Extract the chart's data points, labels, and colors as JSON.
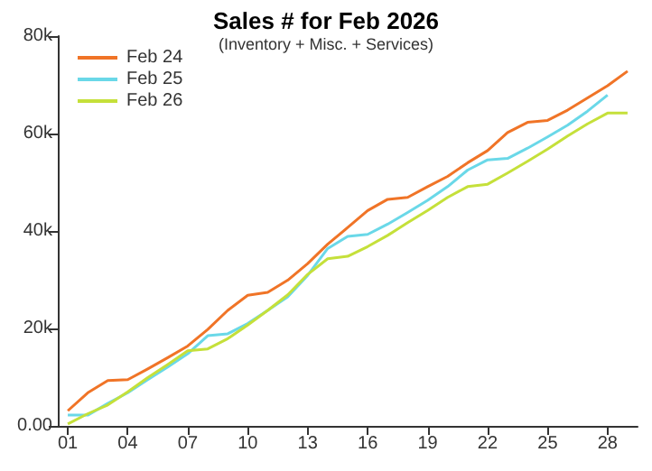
{
  "chart_data": {
    "type": "line",
    "title": "Sales # for Feb 2026",
    "subtitle": "(Inventory + Misc. + Services)",
    "categories": [
      "01",
      null,
      null,
      "04",
      null,
      null,
      "07",
      null,
      null,
      "10",
      null,
      null,
      "13",
      null,
      null,
      "16",
      null,
      null,
      "19",
      null,
      null,
      "22",
      null,
      null,
      "25",
      null,
      null,
      "28",
      null
    ],
    "series": [
      {
        "name": "Feb 24",
        "color": "#f07427",
        "values": [
          3100,
          6800,
          9300,
          9500,
          11700,
          14000,
          16400,
          19800,
          23700,
          26800,
          27400,
          29900,
          33300,
          37300,
          40700,
          44200,
          46500,
          46900,
          49100,
          51200,
          54000,
          56500,
          60200,
          62300,
          62700,
          64800,
          67300,
          69800,
          72800
        ]
      },
      {
        "name": "Feb 25",
        "color": "#6ad8e8",
        "values": [
          2200,
          2200,
          4600,
          6800,
          9500,
          12100,
          14800,
          18500,
          18900,
          21000,
          23700,
          26500,
          30900,
          36400,
          38900,
          39300,
          41400,
          43800,
          46300,
          49100,
          52500,
          54600,
          54900,
          57000,
          59300,
          61700,
          64600,
          67900,
          null
        ]
      },
      {
        "name": "Feb 26",
        "color": "#c5e03a",
        "values": [
          400,
          2500,
          4300,
          7000,
          9900,
          12600,
          15400,
          15800,
          17900,
          20700,
          23700,
          26900,
          31100,
          34300,
          34800,
          36800,
          39100,
          41700,
          44200,
          46900,
          49100,
          49600,
          51900,
          54300,
          56800,
          59500,
          62000,
          64200,
          64200
        ]
      }
    ],
    "ylim": [
      0,
      80000
    ],
    "yticks": [
      {
        "value": 0,
        "label": "0.00"
      },
      {
        "value": 20000,
        "label": "20k"
      },
      {
        "value": 40000,
        "label": "40k"
      },
      {
        "value": 60000,
        "label": "60k"
      },
      {
        "value": 80000,
        "label": "80k"
      }
    ],
    "grid": false,
    "legend": "top left",
    "marker": "none",
    "line_style": "solid"
  }
}
